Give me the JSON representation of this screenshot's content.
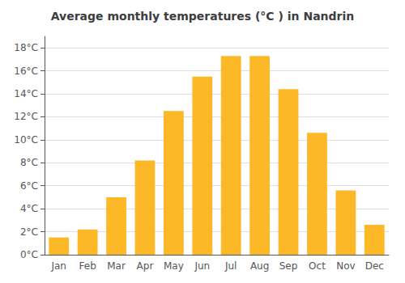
{
  "chart_data": {
    "type": "bar",
    "title": "Average monthly temperatures (°C ) in Nandrin",
    "categories": [
      "Jan",
      "Feb",
      "Mar",
      "Apr",
      "May",
      "Jun",
      "Jul",
      "Aug",
      "Sep",
      "Oct",
      "Nov",
      "Dec"
    ],
    "values": [
      1.5,
      2.2,
      5.0,
      8.2,
      12.5,
      15.5,
      17.3,
      17.3,
      14.4,
      10.6,
      5.6,
      2.6
    ],
    "color": "#FDB827",
    "ylim": [
      0,
      19
    ],
    "yticks": [
      {
        "value": 0,
        "label": "0°C"
      },
      {
        "value": 2,
        "label": "2°C"
      },
      {
        "value": 4,
        "label": "4°C"
      },
      {
        "value": 6,
        "label": "6°C"
      },
      {
        "value": 8,
        "label": "8°C"
      },
      {
        "value": 10,
        "label": "10°C"
      },
      {
        "value": 12,
        "label": "12°C"
      },
      {
        "value": 14,
        "label": "14°C"
      },
      {
        "value": 16,
        "label": "16°C"
      },
      {
        "value": 18,
        "label": "18°C"
      }
    ],
    "grid": true
  }
}
